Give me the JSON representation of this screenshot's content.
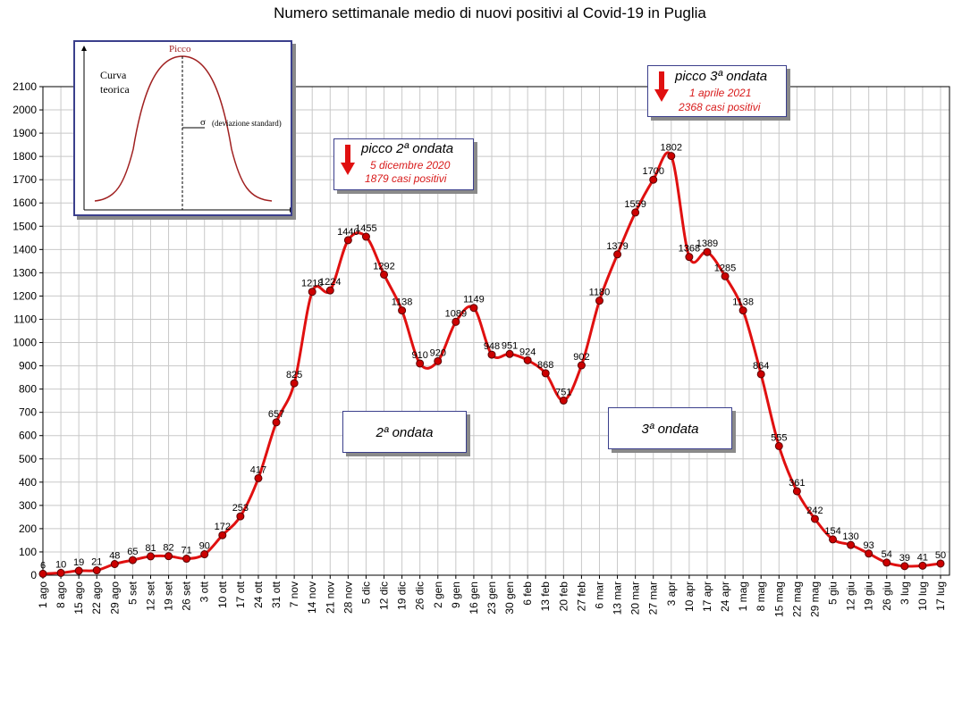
{
  "chart_data": {
    "type": "line",
    "title": "Numero settimanale medio di nuovi positivi al Covid-19 in Puglia",
    "xlabel": "",
    "ylabel": "",
    "ylim": [
      0,
      2100
    ],
    "yticks": [
      0,
      100,
      200,
      300,
      400,
      500,
      600,
      700,
      800,
      900,
      1000,
      1100,
      1200,
      1300,
      1400,
      1500,
      1600,
      1700,
      1800,
      1900,
      2000,
      2100
    ],
    "grid": true,
    "categories": [
      "1 ago",
      "8 ago",
      "15 ago",
      "22 ago",
      "29 ago",
      "5 set",
      "12 set",
      "19 set",
      "26 set",
      "3 ott",
      "10 ott",
      "17 ott",
      "24 ott",
      "31 ott",
      "7 nov",
      "14 nov",
      "21 nov",
      "28 nov",
      "5 dic",
      "12 dic",
      "19 dic",
      "26 dic",
      "2 gen",
      "9 gen",
      "16 gen",
      "23 gen",
      "30 gen",
      "6 feb",
      "13 feb",
      "20 feb",
      "27 feb",
      "6 mar",
      "13 mar",
      "20 mar",
      "27 mar",
      "3 apr",
      "10 apr",
      "17 apr",
      "24 apr",
      "1 mag",
      "8 mag",
      "15 mag",
      "22 mag",
      "29 mag",
      "5 giu",
      "12 giu",
      "19 giu",
      "26 giu",
      "3 lug",
      "10 lug",
      "17 lug"
    ],
    "values": [
      6,
      10,
      19,
      21,
      48,
      65,
      81,
      82,
      71,
      90,
      172,
      253,
      417,
      657,
      825,
      1218,
      1224,
      1440,
      1455,
      1292,
      1138,
      910,
      920,
      1089,
      1149,
      948,
      951,
      924,
      868,
      751,
      902,
      1180,
      1379,
      1559,
      1700,
      1802,
      1368,
      1389,
      1285,
      1138,
      864,
      555,
      361,
      242,
      154,
      130,
      93,
      54,
      39,
      41,
      50
    ],
    "series_color": "#e01010",
    "marker_color": "#cc0000"
  },
  "annotations": {
    "wave2": "2ª ondata",
    "wave3": "3ª ondata",
    "peak2": {
      "title": "picco 2ª ondata",
      "date": "5 dicembre 2020",
      "cases": "1879 casi positivi"
    },
    "peak3": {
      "title": "picco 3ª ondata",
      "date": "1 aprile 2021",
      "cases": "2368 casi positivi"
    }
  },
  "inset": {
    "peak_label": "Picco",
    "curve_label_line1": "Curva",
    "curve_label_line2": "teorica",
    "sigma_label": "σ",
    "sigma_desc": "(deviazione standard)"
  }
}
